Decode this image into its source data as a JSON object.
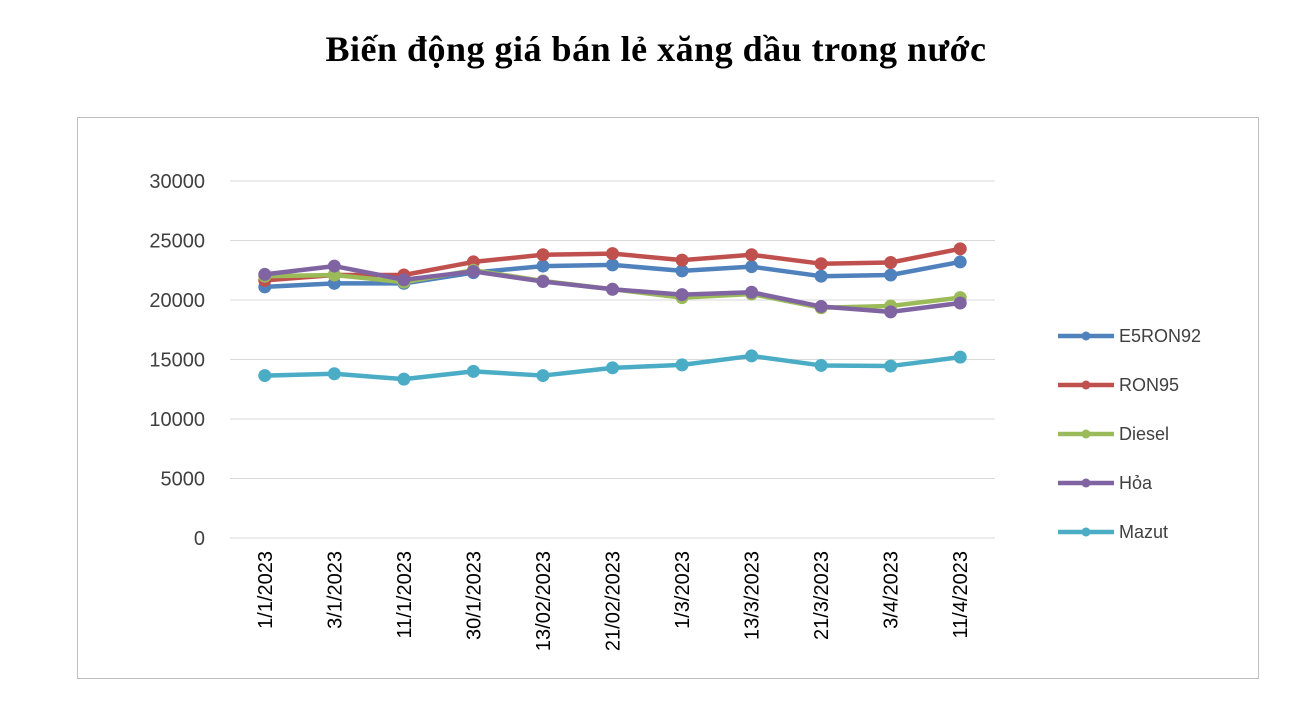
{
  "chart_data": {
    "type": "line",
    "title": "Biến động giá bán lẻ xăng dầu trong nước",
    "xlabel": "",
    "ylabel": "",
    "categories": [
      "1/1/2023",
      "3/1/2023",
      "11/1/2023",
      "30/1/2023",
      "13/02/2023",
      "21/02/2023",
      "1/3/2023",
      "13/3/2023",
      "21/3/2023",
      "3/4/2023",
      "11/4/2023"
    ],
    "ylim": [
      0,
      30000
    ],
    "yticks": [
      "0",
      "5000",
      "10000",
      "15000",
      "20000",
      "25000",
      "30000"
    ],
    "grid": true,
    "legend_position": "right",
    "series": [
      {
        "name": "E5RON92",
        "color": "#4f81bd",
        "values": [
          21100,
          21400,
          21400,
          22300,
          22850,
          22950,
          22450,
          22800,
          22000,
          22100,
          23200
        ]
      },
      {
        "name": "RON95",
        "color": "#c0504d",
        "values": [
          21650,
          22100,
          22100,
          23200,
          23800,
          23900,
          23350,
          23800,
          23050,
          23150,
          24300
        ]
      },
      {
        "name": "Diesel",
        "color": "#9bbb59",
        "values": [
          22000,
          22100,
          21500,
          22500,
          21600,
          20900,
          20200,
          20500,
          19350,
          19500,
          20200
        ]
      },
      {
        "name": "Hỏa",
        "color": "#8064a2",
        "values": [
          22150,
          22850,
          21700,
          22400,
          21550,
          20900,
          20450,
          20650,
          19450,
          19000,
          19750
        ]
      },
      {
        "name": "Mazut",
        "color": "#4bacc6",
        "values": [
          13650,
          13800,
          13350,
          14000,
          13650,
          14300,
          14550,
          15300,
          14500,
          14450,
          15200
        ]
      }
    ]
  }
}
